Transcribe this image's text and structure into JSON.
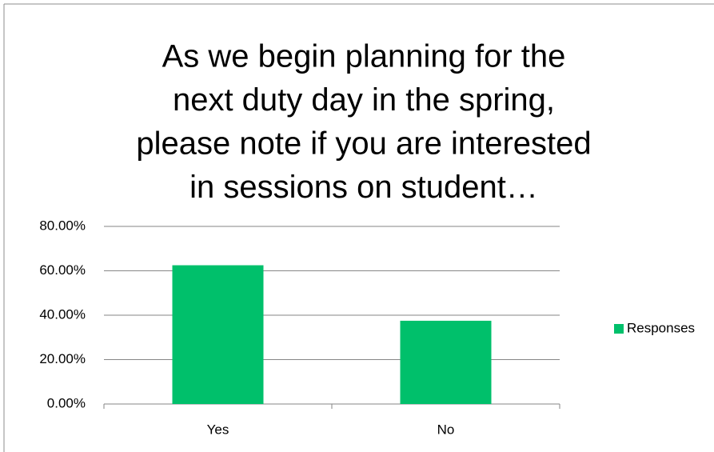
{
  "chart_data": {
    "type": "bar",
    "title": [
      "As we begin planning for the",
      "next duty day in the spring,",
      "please note if you are interested",
      "in sessions on student…"
    ],
    "categories": [
      "Yes",
      "No"
    ],
    "series": [
      {
        "name": "Responses",
        "color": "#00c06b",
        "values": [
          62.5,
          37.5
        ]
      }
    ],
    "ylim": [
      0,
      80
    ],
    "yticks": [
      {
        "value": 0,
        "label": "0.00%"
      },
      {
        "value": 20,
        "label": "20.00%"
      },
      {
        "value": 40,
        "label": "40.00%"
      },
      {
        "value": 60,
        "label": "60.00%"
      },
      {
        "value": 80,
        "label": "80.00%"
      }
    ],
    "grid": true,
    "legend": "right"
  }
}
